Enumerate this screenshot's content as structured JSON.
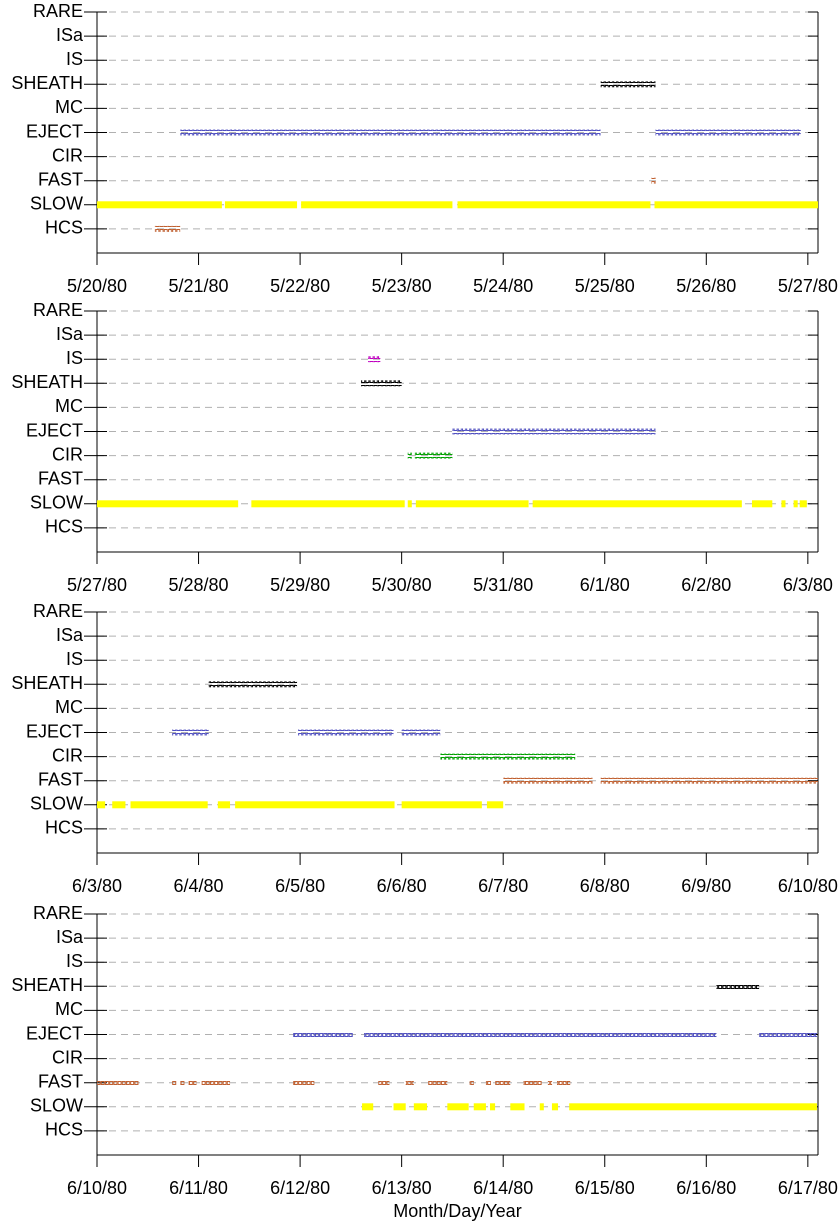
{
  "chart_data": [
    {
      "type": "timeline",
      "categories": [
        "RARE",
        "ISa",
        "IS",
        "SHEATH",
        "MC",
        "EJECT",
        "CIR",
        "FAST",
        "SLOW",
        "HCS"
      ],
      "xlim": [
        0,
        7.1
      ],
      "xticks": [
        {
          "value": 0,
          "label": "5/20/80"
        },
        {
          "value": 1,
          "label": "5/21/80"
        },
        {
          "value": 2,
          "label": "5/22/80"
        },
        {
          "value": 3,
          "label": "5/23/80"
        },
        {
          "value": 4,
          "label": "5/24/80"
        },
        {
          "value": 5,
          "label": "5/25/80"
        },
        {
          "value": 6,
          "label": "5/26/80"
        },
        {
          "value": 7,
          "label": "5/27/80"
        }
      ],
      "grid": true,
      "series": [
        {
          "row": "SHEATH",
          "color": "#000000",
          "style": "hollow",
          "intervals": [
            [
              4.96,
              5.5
            ]
          ]
        },
        {
          "row": "EJECT",
          "color": "#5050c0",
          "style": "hollow",
          "intervals": [
            [
              0.82,
              4.96
            ],
            [
              5.5,
              6.93
            ]
          ]
        },
        {
          "row": "FAST",
          "color": "#c06030",
          "style": "hollow",
          "intervals": [
            [
              5.46,
              5.48
            ]
          ]
        },
        {
          "row": "SLOW",
          "color": "#ffff00",
          "style": "filled",
          "intervals": [
            [
              0,
              1.23
            ],
            [
              1.26,
              1.97
            ],
            [
              2.01,
              3.5
            ],
            [
              3.55,
              5.45
            ],
            [
              5.49,
              7.1
            ]
          ]
        },
        {
          "row": "HCS",
          "color": "#c06030",
          "style": "hollow",
          "intervals": [
            [
              0.57,
              0.82
            ]
          ]
        }
      ]
    },
    {
      "type": "timeline",
      "categories": [
        "RARE",
        "ISa",
        "IS",
        "SHEATH",
        "MC",
        "EJECT",
        "CIR",
        "FAST",
        "SLOW",
        "HCS"
      ],
      "xlim": [
        0,
        7.1
      ],
      "xticks": [
        {
          "value": 0,
          "label": "5/27/80"
        },
        {
          "value": 1,
          "label": "5/28/80"
        },
        {
          "value": 2,
          "label": "5/29/80"
        },
        {
          "value": 3,
          "label": "5/30/80"
        },
        {
          "value": 4,
          "label": "5/31/80"
        },
        {
          "value": 5,
          "label": "6/1/80"
        },
        {
          "value": 6,
          "label": "6/2/80"
        },
        {
          "value": 7,
          "label": "6/3/80"
        }
      ],
      "grid": true,
      "series": [
        {
          "row": "IS",
          "color": "#c000c0",
          "style": "hollow",
          "intervals": [
            [
              2.67,
              2.79
            ]
          ]
        },
        {
          "row": "SHEATH",
          "color": "#000000",
          "style": "hollow",
          "intervals": [
            [
              2.6,
              3.0
            ]
          ]
        },
        {
          "row": "EJECT",
          "color": "#5050c0",
          "style": "hollow",
          "intervals": [
            [
              3.5,
              5.5
            ]
          ]
        },
        {
          "row": "CIR",
          "color": "#00a000",
          "style": "hollow",
          "intervals": [
            [
              3.06,
              3.08
            ],
            [
              3.13,
              3.5
            ]
          ]
        },
        {
          "row": "SLOW",
          "color": "#ffff00",
          "style": "filled",
          "intervals": [
            [
              0,
              1.39
            ],
            [
              1.52,
              3.03
            ],
            [
              3.06,
              3.1
            ],
            [
              3.14,
              4.25
            ],
            [
              4.29,
              6.35
            ],
            [
              6.45,
              6.65
            ],
            [
              6.74,
              6.78
            ],
            [
              6.86,
              6.9
            ],
            [
              6.92,
              6.99
            ]
          ]
        }
      ]
    },
    {
      "type": "timeline",
      "categories": [
        "RARE",
        "ISa",
        "IS",
        "SHEATH",
        "MC",
        "EJECT",
        "CIR",
        "FAST",
        "SLOW",
        "HCS"
      ],
      "xlim": [
        0,
        7.1
      ],
      "xticks": [
        {
          "value": 0,
          "label": "6/3/80"
        },
        {
          "value": 1,
          "label": "6/4/80"
        },
        {
          "value": 2,
          "label": "6/5/80"
        },
        {
          "value": 3,
          "label": "6/6/80"
        },
        {
          "value": 4,
          "label": "6/7/80"
        },
        {
          "value": 5,
          "label": "6/8/80"
        },
        {
          "value": 6,
          "label": "6/9/80"
        },
        {
          "value": 7,
          "label": "6/10/80"
        }
      ],
      "grid": true,
      "series": [
        {
          "row": "SHEATH",
          "color": "#000000",
          "style": "hollow",
          "intervals": [
            [
              1.1,
              1.97
            ]
          ]
        },
        {
          "row": "EJECT",
          "color": "#5050c0",
          "style": "hollow",
          "intervals": [
            [
              0.74,
              1.1
            ],
            [
              1.98,
              2.92
            ],
            [
              3.0,
              3.38
            ]
          ]
        },
        {
          "row": "CIR",
          "color": "#00a000",
          "style": "hollow",
          "intervals": [
            [
              3.38,
              4.71
            ]
          ]
        },
        {
          "row": "FAST",
          "color": "#c06030",
          "style": "hollow",
          "intervals": [
            [
              4.0,
              4.88
            ],
            [
              4.96,
              7.1
            ]
          ]
        },
        {
          "row": "SLOW",
          "color": "#ffff00",
          "style": "filled",
          "intervals": [
            [
              0,
              0.08
            ],
            [
              0.15,
              0.28
            ],
            [
              0.33,
              1.09
            ],
            [
              1.19,
              1.31
            ],
            [
              1.36,
              2.93
            ],
            [
              3.0,
              3.79
            ],
            [
              3.84,
              4.0
            ]
          ]
        }
      ]
    },
    {
      "type": "timeline",
      "categories": [
        "RARE",
        "ISa",
        "IS",
        "SHEATH",
        "MC",
        "EJECT",
        "CIR",
        "FAST",
        "SLOW",
        "HCS"
      ],
      "xlim": [
        0,
        7.1
      ],
      "xticks": [
        {
          "value": 0,
          "label": "6/10/80"
        },
        {
          "value": 1,
          "label": "6/11/80"
        },
        {
          "value": 2,
          "label": "6/12/80"
        },
        {
          "value": 3,
          "label": "6/13/80"
        },
        {
          "value": 4,
          "label": "6/14/80"
        },
        {
          "value": 5,
          "label": "6/15/80"
        },
        {
          "value": 6,
          "label": "6/16/80"
        },
        {
          "value": 7,
          "label": "6/17/80"
        }
      ],
      "xlabel": "Month/Day/Year",
      "grid": true,
      "series": [
        {
          "row": "SHEATH",
          "color": "#000000",
          "style": "hollow",
          "intervals": [
            [
              6.1,
              6.52
            ]
          ]
        },
        {
          "row": "EJECT",
          "color": "#5050c0",
          "style": "hollow",
          "intervals": [
            [
              1.93,
              2.52
            ],
            [
              2.63,
              6.1
            ],
            [
              6.52,
              7.09
            ]
          ]
        },
        {
          "row": "FAST",
          "color": "#c06030",
          "style": "hollow",
          "intervals": [
            [
              0,
              0.41
            ],
            [
              0.74,
              0.78
            ],
            [
              0.82,
              0.86
            ],
            [
              0.9,
              0.98
            ],
            [
              1.03,
              1.31
            ],
            [
              1.93,
              2.14
            ],
            [
              2.77,
              2.88
            ],
            [
              3.04,
              3.12
            ],
            [
              3.26,
              3.45
            ],
            [
              3.67,
              3.71
            ],
            [
              3.83,
              3.88
            ],
            [
              3.92,
              4.07
            ],
            [
              4.2,
              4.38
            ],
            [
              4.44,
              4.47
            ],
            [
              4.53,
              4.66
            ]
          ]
        },
        {
          "row": "SLOW",
          "color": "#ffff00",
          "style": "filled",
          "intervals": [
            [
              2.61,
              2.72
            ],
            [
              2.92,
              3.04
            ],
            [
              3.12,
              3.25
            ],
            [
              3.45,
              3.66
            ],
            [
              3.71,
              3.83
            ],
            [
              3.87,
              3.92
            ],
            [
              4.07,
              4.21
            ],
            [
              4.36,
              4.4
            ],
            [
              4.48,
              4.54
            ],
            [
              4.65,
              7.09
            ]
          ]
        }
      ]
    }
  ]
}
